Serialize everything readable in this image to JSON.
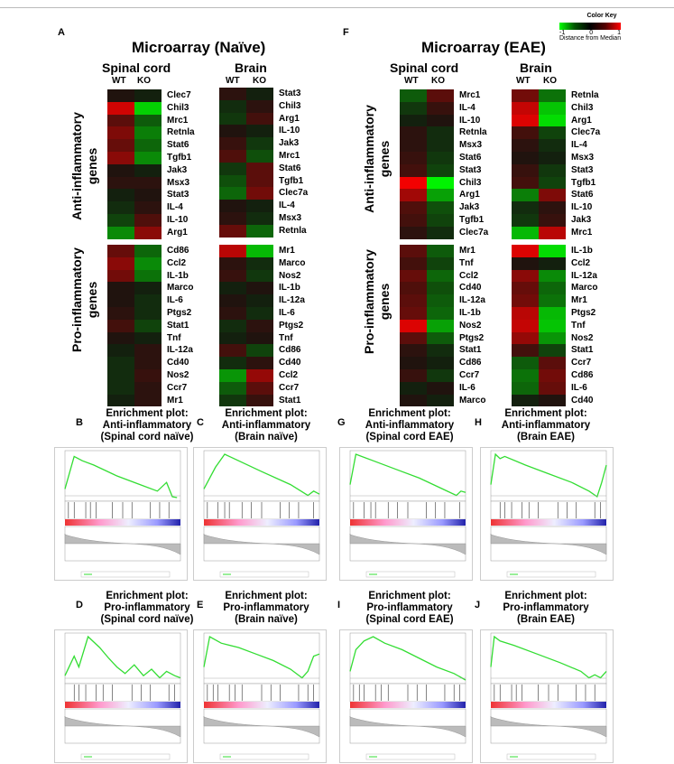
{
  "panels": {
    "A": "A",
    "F": "F",
    "B": "B",
    "C": "C",
    "D": "D",
    "E": "E",
    "G": "G",
    "H": "H",
    "I": "I",
    "J": "J"
  },
  "titles": {
    "naive": "Microarray (Naïve)",
    "eae": "Microarray (EAE)"
  },
  "columns": {
    "spinal": "Spinal cord",
    "brain": "Brain",
    "wt": "WT",
    "ko": "KO"
  },
  "row_labels": {
    "anti": "Anti-inflammatory\ngenes",
    "pro": "Pro-inflammatory\ngenes"
  },
  "color_key": {
    "title": "Color Key",
    "min": "-1",
    "mid": "0",
    "max": "1",
    "axis": "Distance from Median",
    "colors": [
      "#00ff00",
      "#000000",
      "#ff0000"
    ]
  },
  "heatmaps": {
    "naive_spinal_anti": {
      "genes": [
        "Clec7",
        "Chil3",
        "Mrc1",
        "Retnla",
        "Stat6",
        "Tgfb1",
        "Jak3",
        "Msx3",
        "Stat3",
        "IL-4",
        "IL-10",
        "Arg1"
      ],
      "wt": [
        0.05,
        0.8,
        0.3,
        0.45,
        0.35,
        0.5,
        0.05,
        0.1,
        -0.05,
        -0.1,
        -0.2,
        -0.5
      ],
      "ko": [
        -0.05,
        -0.8,
        -0.3,
        -0.45,
        -0.35,
        -0.5,
        -0.05,
        0.1,
        0.05,
        0.1,
        0.25,
        0.5
      ]
    },
    "naive_brain_anti": {
      "genes": [
        "Stat3",
        "Chil3",
        "Arg1",
        "IL-10",
        "Jak3",
        "Mrc1",
        "Stat6",
        "Tgfb1",
        "Clec7a",
        "IL-4",
        "Msx3",
        "Retnla"
      ],
      "wt": [
        0.1,
        -0.1,
        -0.15,
        0.05,
        0.15,
        0.25,
        -0.15,
        -0.25,
        -0.35,
        0.05,
        0.1,
        0.35
      ],
      "ko": [
        -0.05,
        0.1,
        0.2,
        -0.05,
        -0.15,
        -0.25,
        0.3,
        0.3,
        0.4,
        -0.05,
        -0.1,
        -0.35
      ]
    },
    "naive_spinal_pro": {
      "genes": [
        "Cd86",
        "Ccl2",
        "IL-1b",
        "Marco",
        "IL-6",
        "Ptgs2",
        "Stat1",
        "Tnf",
        "IL-12a",
        "Cd40",
        "Nos2",
        "Ccr7",
        "Mr1"
      ],
      "wt": [
        0.35,
        0.5,
        0.4,
        0.05,
        0.05,
        0.1,
        0.2,
        0.05,
        -0.05,
        -0.1,
        -0.1,
        -0.1,
        -0.05
      ],
      "ko": [
        -0.35,
        -0.5,
        -0.4,
        -0.05,
        -0.1,
        -0.1,
        -0.2,
        -0.05,
        0.1,
        0.1,
        0.15,
        0.1,
        0.1
      ]
    },
    "naive_brain_pro": {
      "genes": [
        "Mr1",
        "Marco",
        "Nos2",
        "IL-1b",
        "IL-12a",
        "IL-6",
        "Ptgs2",
        "Tnf",
        "Cd86",
        "Cd40",
        "Ccl2",
        "Ccr7",
        "Stat1"
      ],
      "wt": [
        0.7,
        0.1,
        0.15,
        -0.05,
        0.05,
        0.1,
        -0.1,
        -0.05,
        0.2,
        -0.1,
        -0.55,
        -0.3,
        -0.15
      ],
      "ko": [
        -0.7,
        -0.1,
        -0.15,
        0.05,
        -0.05,
        -0.1,
        0.1,
        0.05,
        -0.2,
        0.1,
        0.55,
        0.3,
        0.15
      ]
    },
    "eae_spinal_anti": {
      "genes": [
        "Mrc1",
        "IL-4",
        "IL-10",
        "Retnla",
        "Msx3",
        "Stat6",
        "Stat3",
        "Chil3",
        "Arg1",
        "Jak3",
        "Tgfb1",
        "Clec7a"
      ],
      "wt": [
        -0.3,
        -0.15,
        -0.05,
        0.1,
        0.1,
        0.15,
        0.2,
        0.95,
        0.6,
        0.25,
        0.2,
        0.1
      ],
      "ko": [
        0.3,
        0.15,
        0.05,
        -0.1,
        -0.1,
        -0.15,
        -0.2,
        -0.95,
        -0.6,
        -0.25,
        -0.2,
        -0.1
      ]
    },
    "eae_brain_anti": {
      "genes": [
        "Retnla",
        "Chil3",
        "Arg1",
        "Clec7a",
        "IL-4",
        "Msx3",
        "Stat3",
        "Tgfb1",
        "Stat6",
        "IL-10",
        "Jak3",
        "Mrc1"
      ],
      "wt": [
        0.4,
        0.75,
        0.85,
        0.2,
        0.1,
        0.05,
        0.15,
        0.2,
        -0.45,
        -0.1,
        -0.15,
        -0.7
      ],
      "ko": [
        -0.4,
        -0.75,
        -0.85,
        -0.2,
        -0.1,
        -0.05,
        -0.15,
        -0.2,
        0.45,
        0.1,
        0.15,
        0.7
      ]
    },
    "eae_spinal_pro": {
      "genes": [
        "Mr1",
        "Tnf",
        "Ccl2",
        "Cd40",
        "IL-12a",
        "IL-1b",
        "Nos2",
        "Ptgs2",
        "Stat1",
        "Cd86",
        "Ccr7",
        "IL-6",
        "Marco"
      ],
      "wt": [
        0.3,
        0.2,
        0.35,
        0.25,
        0.3,
        0.35,
        0.85,
        0.3,
        0.1,
        0.05,
        0.15,
        -0.05,
        0.05
      ],
      "ko": [
        -0.3,
        -0.2,
        -0.35,
        -0.25,
        -0.3,
        -0.35,
        -0.6,
        -0.3,
        -0.1,
        -0.05,
        -0.15,
        0.05,
        -0.05
      ]
    },
    "eae_brain_pro": {
      "genes": [
        "IL-1b",
        "Ccl2",
        "IL-12a",
        "Marco",
        "Mr1",
        "Ptgs2",
        "Tnf",
        "Nos2",
        "Stat1",
        "Ccr7",
        "Cd86",
        "IL-6",
        "Cd40"
      ],
      "wt": [
        0.85,
        0.05,
        0.5,
        0.35,
        0.4,
        0.7,
        0.75,
        0.55,
        0.2,
        -0.3,
        -0.4,
        -0.35,
        -0.05
      ],
      "ko": [
        -0.85,
        -0.05,
        -0.5,
        -0.35,
        -0.4,
        -0.7,
        -0.75,
        -0.55,
        -0.2,
        0.3,
        0.4,
        0.35,
        0.05
      ]
    }
  },
  "enrichment": {
    "B": {
      "title": "Enrichment plot:\nAnti-inflammatory\n(Spinal cord naïve)"
    },
    "C": {
      "title": "Enrichment plot:\nAnti-inflammatory\n(Brain naïve)"
    },
    "G": {
      "title": "Enrichment plot:\nAnti-inflammatory\n(Spinal cord EAE)"
    },
    "H": {
      "title": "Enrichment plot:\nAnti-inflammatory\n(Brain EAE)"
    },
    "D": {
      "title": "Enrichment plot:\nPro-inflammatory\n(Spinal cord naïve)"
    },
    "E": {
      "title": "Enrichment plot:\nPro-inflammatory\n(Brain naïve)"
    },
    "I": {
      "title": "Enrichment plot:\nPro-inflammatory\n(Spinal cord EAE)"
    },
    "J": {
      "title": "Enrichment plot:\nPro-inflammatory\n(Brain EAE)"
    }
  },
  "chart_data": [
    {
      "type": "heatmap",
      "title": "Microarray (Naïve)",
      "columns": [
        "WT",
        "KO"
      ],
      "colormap": [
        "#00ff00",
        "#000000",
        "#ff0000"
      ],
      "range": [
        -1,
        1
      ]
    },
    {
      "type": "heatmap",
      "title": "Microarray (EAE)",
      "columns": [
        "WT",
        "KO"
      ],
      "colormap": [
        "#00ff00",
        "#000000",
        "#ff0000"
      ],
      "range": [
        -1,
        1
      ]
    }
  ]
}
